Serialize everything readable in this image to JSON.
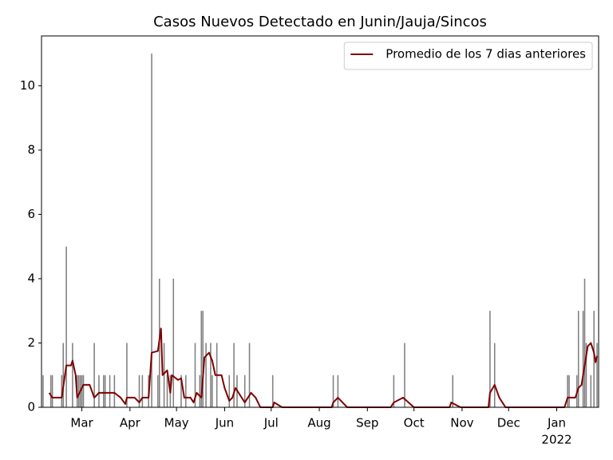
{
  "chart_data": {
    "type": "combo",
    "title": "Casos Nuevos Detectado en Junin/Jauja/Sincos",
    "xlim": [
      0,
      359
    ],
    "ylim": [
      0,
      11.55
    ],
    "yticks": [
      0,
      2,
      4,
      6,
      8,
      10
    ],
    "xticks": [
      {
        "value": 26,
        "label": "Mar"
      },
      {
        "value": 57,
        "label": "Apr"
      },
      {
        "value": 87,
        "label": "May"
      },
      {
        "value": 118,
        "label": "Jun"
      },
      {
        "value": 148,
        "label": "Jul"
      },
      {
        "value": 179,
        "label": "Aug"
      },
      {
        "value": 210,
        "label": "Sep"
      },
      {
        "value": 240,
        "label": "Oct"
      },
      {
        "value": 271,
        "label": "Nov"
      },
      {
        "value": 301,
        "label": "Dec"
      },
      {
        "value": 332,
        "label": "Jan",
        "sublabel": "2022"
      }
    ],
    "legend_position": "upper right",
    "series": [
      {
        "type": "bar",
        "color": "#808080",
        "x": [
          1,
          6,
          7,
          13,
          14,
          16,
          20,
          23,
          24,
          25,
          26,
          27,
          34,
          37,
          40,
          41,
          44,
          47,
          55,
          63,
          65,
          69,
          71,
          75,
          76,
          79,
          81,
          83,
          85,
          90,
          93,
          99,
          102,
          103,
          104,
          106,
          109,
          110,
          113,
          121,
          124,
          126,
          131,
          134,
          149,
          188,
          191,
          227,
          234,
          265,
          289,
          292,
          339,
          340,
          345,
          346,
          349,
          350,
          351,
          354,
          356,
          358
        ],
        "values": [
          1,
          1,
          1,
          1,
          2,
          5,
          2,
          1,
          1,
          1,
          1,
          1,
          2,
          1,
          1,
          1,
          1,
          1,
          2,
          1,
          1,
          1,
          11,
          1,
          4,
          2,
          1,
          1,
          4,
          1,
          1,
          2,
          1,
          3,
          3,
          2,
          2,
          1,
          2,
          1,
          2,
          1,
          1,
          2,
          1,
          1,
          1,
          1,
          2,
          1,
          3,
          2,
          1,
          1,
          1,
          3,
          3,
          4,
          2,
          1,
          3,
          2
        ]
      },
      {
        "type": "line",
        "name": "Promedio de los 7 dias anteriores",
        "color": "#800000",
        "x": [
          5,
          7,
          13,
          16,
          19,
          20,
          22,
          23,
          27,
          31,
          34,
          37,
          47,
          51,
          54,
          55,
          60,
          63,
          65,
          69,
          71,
          75,
          77,
          78,
          81,
          83,
          84,
          88,
          90,
          92,
          96,
          98,
          100,
          103,
          105,
          108,
          110,
          112,
          116,
          118,
          121,
          123,
          125,
          127,
          131,
          135,
          138,
          141,
          149,
          150,
          155,
          187,
          188,
          191,
          194,
          197,
          225,
          227,
          233,
          240,
          263,
          264,
          270,
          288,
          289,
          292,
          295,
          299,
          337,
          339,
          344,
          346,
          348,
          352,
          354,
          356,
          357,
          358
        ],
        "values": [
          0.45,
          0.3,
          0.3,
          1.3,
          1.3,
          1.45,
          1.0,
          0.3,
          0.7,
          0.7,
          0.3,
          0.45,
          0.45,
          0.3,
          0.1,
          0.3,
          0.3,
          0.15,
          0.3,
          0.3,
          1.7,
          1.75,
          2.45,
          1.0,
          1.15,
          0.45,
          1.0,
          0.85,
          0.9,
          0.3,
          0.3,
          0.15,
          0.45,
          0.3,
          1.55,
          1.7,
          1.45,
          1.0,
          1.0,
          0.6,
          0.2,
          0.3,
          0.6,
          0.45,
          0.15,
          0.45,
          0.3,
          0,
          0,
          0.15,
          0,
          0,
          0.15,
          0.3,
          0.15,
          0,
          0,
          0.15,
          0.3,
          0,
          0,
          0.15,
          0,
          0,
          0.45,
          0.7,
          0.3,
          0,
          0,
          0.3,
          0.3,
          0.6,
          0.7,
          1.9,
          2.0,
          1.7,
          1.4,
          1.6
        ]
      }
    ]
  }
}
